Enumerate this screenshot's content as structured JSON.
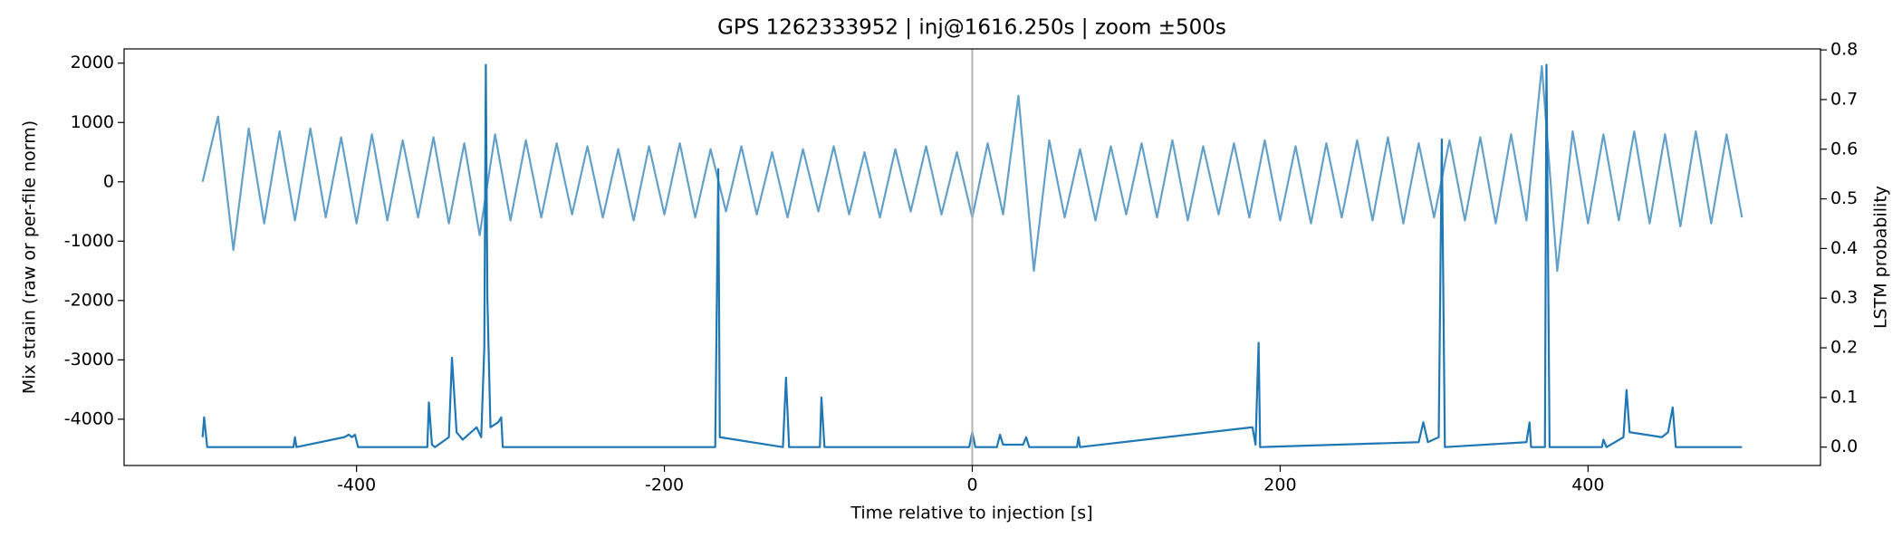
{
  "chart_data": {
    "type": "line",
    "title": "GPS 1262333952 | inj@1616.250s | zoom ±500s",
    "xlabel": "Time relative to injection [s]",
    "ylabel": "Mix strain (raw or per-file norm)",
    "y2label": "LSTM probability",
    "xlim": [
      -551,
      551
    ],
    "xticks": [
      -400,
      -200,
      0,
      200,
      400
    ],
    "ylim": [
      -4780,
      2240
    ],
    "yticks": [
      -4000,
      -3000,
      -2000,
      -1000,
      0,
      1000,
      2000
    ],
    "y2lim": [
      -0.037,
      0.802
    ],
    "y2ticks": [
      {
        "value": 0,
        "label": "0.0"
      },
      0.1,
      0.2,
      0.3,
      0.4,
      0.5,
      0.6,
      0.7,
      0.8
    ],
    "vline_x": 0,
    "vline_color": "#b0b0b0",
    "series": [
      {
        "color": "#1f77b4",
        "alpha": 0.7,
        "x": [
          -500,
          -490,
          -480,
          -470,
          -460,
          -450,
          -440,
          -430,
          -420,
          -410,
          -400,
          -390,
          -380,
          -370,
          -360,
          -350,
          -340,
          -330,
          -320,
          -310,
          -300,
          -290,
          -280,
          -270,
          -260,
          -250,
          -240,
          -230,
          -220,
          -210,
          -200,
          -190,
          -180,
          -170,
          -160,
          -150,
          -140,
          -130,
          -120,
          -110,
          -100,
          -90,
          -80,
          -70,
          -60,
          -50,
          -40,
          -30,
          -20,
          -10,
          0,
          10,
          20,
          30,
          40,
          50,
          60,
          70,
          80,
          90,
          100,
          110,
          120,
          130,
          140,
          150,
          160,
          170,
          180,
          190,
          200,
          210,
          220,
          230,
          240,
          250,
          260,
          270,
          280,
          290,
          300,
          310,
          320,
          330,
          340,
          350,
          360,
          370,
          380,
          390,
          400,
          410,
          420,
          430,
          440,
          450,
          460,
          470,
          480,
          490,
          500
        ],
        "values": [
          0,
          1100,
          -1150,
          900,
          -700,
          850,
          -650,
          900,
          -600,
          750,
          -700,
          800,
          -650,
          700,
          -600,
          750,
          -700,
          650,
          -900,
          800,
          -650,
          700,
          -600,
          650,
          -550,
          600,
          -600,
          550,
          -650,
          600,
          -550,
          650,
          -600,
          550,
          -500,
          600,
          -550,
          500,
          -600,
          550,
          -500,
          600,
          -550,
          500,
          -600,
          550,
          -500,
          600,
          -550,
          500,
          -600,
          650,
          -550,
          1450,
          -1500,
          700,
          -600,
          550,
          -650,
          600,
          -550,
          650,
          -600,
          700,
          -650,
          600,
          -550,
          650,
          -600,
          700,
          -650,
          600,
          -700,
          650,
          -600,
          700,
          -650,
          750,
          -700,
          650,
          -600,
          700,
          -650,
          750,
          -700,
          800,
          -650,
          1950,
          -1500,
          850,
          -700,
          800,
          -650,
          850,
          -700,
          800,
          -750,
          850,
          -700,
          800,
          -600
        ]
      },
      {
        "color": "#1f77b4",
        "alpha": 1,
        "axis": "y2",
        "x": [
          -500,
          -499,
          -497,
          -441,
          -440,
          -439,
          -408,
          -405,
          -403,
          -401,
          -399,
          -354,
          -353,
          -351,
          -349,
          -340,
          -338,
          -335,
          -331,
          -322,
          -319,
          -317,
          -316,
          -315,
          -313,
          -308,
          -306,
          -305,
          -167,
          -165,
          -164,
          -123,
          -121,
          -119,
          -99,
          -98,
          -96,
          -2,
          0,
          2,
          16,
          18,
          20,
          33,
          35,
          37,
          68,
          69,
          70,
          182,
          184,
          186,
          187,
          290,
          293,
          296,
          303,
          305,
          307,
          360,
          362,
          363,
          372,
          373,
          374,
          375,
          409,
          410,
          412,
          423,
          425,
          427,
          448,
          452,
          455,
          457,
          500
        ],
        "values": [
          0.02,
          0.06,
          0,
          0,
          0.02,
          0,
          0.02,
          0.025,
          0.02,
          0.025,
          0,
          0,
          0.09,
          0.005,
          0,
          0.02,
          0.18,
          0.03,
          0.015,
          0.04,
          0.02,
          0.2,
          0.77,
          0.3,
          0.04,
          0.05,
          0.06,
          0,
          0,
          0.56,
          0.02,
          0,
          0.14,
          0,
          0,
          0.1,
          0,
          0,
          0.03,
          0,
          0,
          0.025,
          0.005,
          0.005,
          0.02,
          0,
          0,
          0.02,
          0,
          0.04,
          0.005,
          0.21,
          0,
          0.01,
          0.05,
          0.01,
          0.02,
          0.62,
          0,
          0.01,
          0.05,
          0,
          0,
          0.77,
          0.4,
          0,
          0,
          0.015,
          0,
          0.02,
          0.115,
          0.03,
          0.02,
          0.03,
          0.08,
          0,
          0
        ]
      }
    ]
  }
}
